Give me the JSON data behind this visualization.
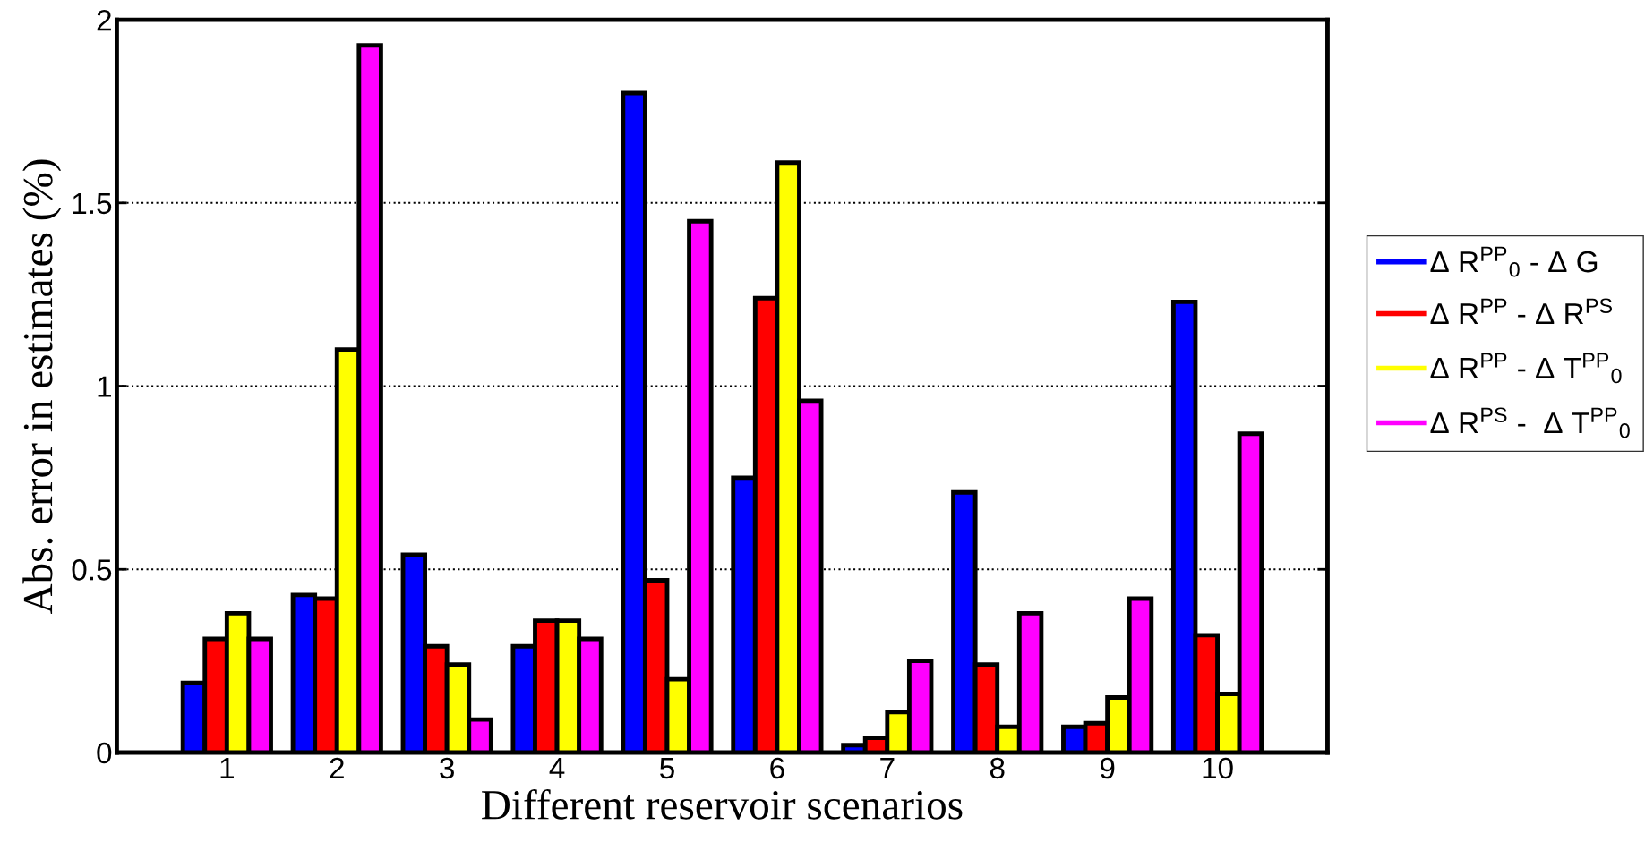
{
  "chart_data": {
    "type": "bar",
    "xlabel": "Different reservoir scenarios",
    "ylabel": "Abs. error in estimates (%)",
    "categories": [
      "1",
      "2",
      "3",
      "4",
      "5",
      "6",
      "7",
      "8",
      "9",
      "10"
    ],
    "series": [
      {
        "name": "Δ R$^{PP}$$_{0}$ - Δ G",
        "color": "#0000ff",
        "values": [
          0.19,
          0.43,
          0.54,
          0.29,
          1.8,
          0.75,
          0.02,
          0.71,
          0.07,
          1.23
        ]
      },
      {
        "name": "Δ R$^{PP}$ - Δ R$^{PS}$",
        "color": "#ff0000",
        "values": [
          0.31,
          0.42,
          0.29,
          0.36,
          0.47,
          1.24,
          0.04,
          0.24,
          0.08,
          0.32
        ]
      },
      {
        "name": "Δ R$^{PP}$ - Δ T$^{PP}$$_{0}$",
        "color": "#ffff00",
        "values": [
          0.38,
          1.1,
          0.24,
          0.36,
          0.2,
          1.61,
          0.11,
          0.07,
          0.15,
          0.16
        ]
      },
      {
        "name": "Δ R$^{PS}$ -  Δ T$^{PP}$$_{0}$",
        "color": "#ff00ff",
        "values": [
          0.31,
          1.93,
          0.09,
          0.31,
          1.45,
          0.96,
          0.25,
          0.38,
          0.42,
          0.87
        ]
      }
    ],
    "ylim": [
      0,
      2
    ],
    "yticks": [
      0,
      0.5,
      1,
      1.5,
      2
    ],
    "grid": "y",
    "legend": "right"
  }
}
